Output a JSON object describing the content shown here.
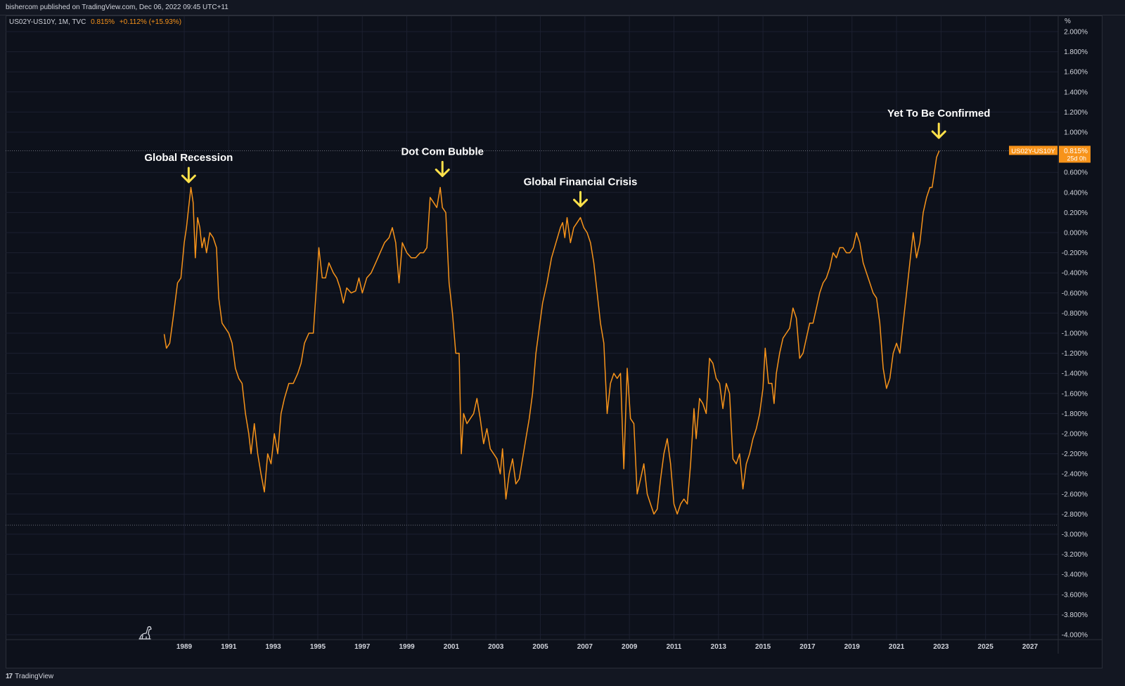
{
  "header": {
    "publisher_text": "bishercom published on TradingView.com, Dec 06, 2022 09:45 UTC+11"
  },
  "legend": {
    "symbol": "US02Y-US10Y, 1M, TVC",
    "value": "0.815%",
    "change": "+0.112% (+15.93%)"
  },
  "footer": {
    "logo_glyph": "17",
    "brand": "TradingView"
  },
  "colors": {
    "background": "#131722",
    "plot_bg": "#0d111b",
    "series": "#f7931a",
    "arrow": "#ffe14a",
    "price_tag": "#f7931a"
  },
  "price_tag": {
    "symbol_label": "US02Y-US10Y",
    "value_label": "0.815%",
    "countdown_label": "25d 0h"
  },
  "chart_data": {
    "type": "line",
    "title": "",
    "xlabel": "",
    "ylabel": "%",
    "unit_label": "%",
    "ylim": [
      -4.2,
      2.1
    ],
    "xlim": [
      1986.0,
      2028.9
    ],
    "grid": true,
    "x_ticks": [
      "1989",
      "1991",
      "1993",
      "1995",
      "1997",
      "1999",
      "2001",
      "2003",
      "2005",
      "2007",
      "2009",
      "2011",
      "2013",
      "2015",
      "2017",
      "2019",
      "2021",
      "2023",
      "2025",
      "2027"
    ],
    "y_ticks": [
      "2.000%",
      "1.800%",
      "1.600%",
      "1.400%",
      "1.200%",
      "1.000%",
      "0.600%",
      "0.400%",
      "0.200%",
      "0.000%",
      "-0.200%",
      "-0.400%",
      "-0.600%",
      "-0.800%",
      "-1.000%",
      "-1.200%",
      "-1.400%",
      "-1.600%",
      "-1.800%",
      "-2.000%",
      "-2.200%",
      "-2.400%",
      "-2.600%",
      "-2.800%",
      "-3.000%",
      "-3.200%",
      "-3.400%",
      "-3.600%",
      "-3.800%",
      "-4.000%"
    ],
    "reference_lines": [
      0.815,
      -2.91
    ],
    "annotations": [
      {
        "text": "Global Recession",
        "x": 1989.2,
        "y": 0.42
      },
      {
        "text": "Dot Com Bubble",
        "x": 2000.6,
        "y": 0.48
      },
      {
        "text": "Global Financial Crisis",
        "x": 2006.8,
        "y": 0.18
      },
      {
        "text": "Yet To Be Confirmed",
        "x": 2022.9,
        "y": 0.86
      }
    ],
    "series": [
      {
        "name": "US02Y-US10Y",
        "points": [
          [
            1988.1,
            -1.01
          ],
          [
            1988.2,
            -1.15
          ],
          [
            1988.35,
            -1.1
          ],
          [
            1988.5,
            -0.85
          ],
          [
            1988.7,
            -0.5
          ],
          [
            1988.85,
            -0.45
          ],
          [
            1989.0,
            -0.1
          ],
          [
            1989.1,
            0.05
          ],
          [
            1989.2,
            0.25
          ],
          [
            1989.3,
            0.45
          ],
          [
            1989.4,
            0.3
          ],
          [
            1989.5,
            -0.25
          ],
          [
            1989.6,
            0.15
          ],
          [
            1989.7,
            0.05
          ],
          [
            1989.8,
            -0.15
          ],
          [
            1989.9,
            -0.05
          ],
          [
            1990.0,
            -0.2
          ],
          [
            1990.15,
            0.0
          ],
          [
            1990.3,
            -0.05
          ],
          [
            1990.45,
            -0.15
          ],
          [
            1990.55,
            -0.65
          ],
          [
            1990.7,
            -0.9
          ],
          [
            1990.85,
            -0.95
          ],
          [
            1991.0,
            -1.0
          ],
          [
            1991.15,
            -1.1
          ],
          [
            1991.3,
            -1.35
          ],
          [
            1991.45,
            -1.45
          ],
          [
            1991.6,
            -1.5
          ],
          [
            1991.75,
            -1.8
          ],
          [
            1991.9,
            -2.0
          ],
          [
            1992.0,
            -2.2
          ],
          [
            1992.15,
            -1.9
          ],
          [
            1992.3,
            -2.2
          ],
          [
            1992.45,
            -2.4
          ],
          [
            1992.6,
            -2.58
          ],
          [
            1992.75,
            -2.2
          ],
          [
            1992.9,
            -2.3
          ],
          [
            1993.05,
            -2.0
          ],
          [
            1993.2,
            -2.2
          ],
          [
            1993.35,
            -1.8
          ],
          [
            1993.5,
            -1.65
          ],
          [
            1993.7,
            -1.5
          ],
          [
            1993.9,
            -1.5
          ],
          [
            1994.1,
            -1.4
          ],
          [
            1994.25,
            -1.3
          ],
          [
            1994.4,
            -1.1
          ],
          [
            1994.6,
            -1.0
          ],
          [
            1994.8,
            -1.0
          ],
          [
            1994.95,
            -0.5
          ],
          [
            1995.05,
            -0.15
          ],
          [
            1995.2,
            -0.45
          ],
          [
            1995.35,
            -0.45
          ],
          [
            1995.5,
            -0.3
          ],
          [
            1995.7,
            -0.4
          ],
          [
            1995.85,
            -0.45
          ],
          [
            1996.0,
            -0.55
          ],
          [
            1996.15,
            -0.7
          ],
          [
            1996.3,
            -0.55
          ],
          [
            1996.5,
            -0.6
          ],
          [
            1996.7,
            -0.58
          ],
          [
            1996.85,
            -0.45
          ],
          [
            1997.0,
            -0.6
          ],
          [
            1997.2,
            -0.45
          ],
          [
            1997.4,
            -0.4
          ],
          [
            1997.6,
            -0.3
          ],
          [
            1997.8,
            -0.2
          ],
          [
            1998.0,
            -0.1
          ],
          [
            1998.2,
            -0.05
          ],
          [
            1998.35,
            0.05
          ],
          [
            1998.5,
            -0.1
          ],
          [
            1998.65,
            -0.5
          ],
          [
            1998.8,
            -0.1
          ],
          [
            1999.0,
            -0.2
          ],
          [
            1999.2,
            -0.25
          ],
          [
            1999.4,
            -0.25
          ],
          [
            1999.6,
            -0.2
          ],
          [
            1999.75,
            -0.2
          ],
          [
            1999.9,
            -0.15
          ],
          [
            2000.05,
            0.35
          ],
          [
            2000.2,
            0.3
          ],
          [
            2000.35,
            0.25
          ],
          [
            2000.5,
            0.45
          ],
          [
            2000.6,
            0.25
          ],
          [
            2000.75,
            0.2
          ],
          [
            2000.9,
            -0.5
          ],
          [
            2001.05,
            -0.8
          ],
          [
            2001.2,
            -1.2
          ],
          [
            2001.35,
            -1.2
          ],
          [
            2001.45,
            -2.2
          ],
          [
            2001.55,
            -1.8
          ],
          [
            2001.7,
            -1.9
          ],
          [
            2001.85,
            -1.85
          ],
          [
            2002.0,
            -1.8
          ],
          [
            2002.15,
            -1.65
          ],
          [
            2002.3,
            -1.85
          ],
          [
            2002.45,
            -2.1
          ],
          [
            2002.6,
            -1.95
          ],
          [
            2002.75,
            -2.15
          ],
          [
            2002.9,
            -2.2
          ],
          [
            2003.05,
            -2.25
          ],
          [
            2003.2,
            -2.4
          ],
          [
            2003.3,
            -2.15
          ],
          [
            2003.45,
            -2.65
          ],
          [
            2003.6,
            -2.4
          ],
          [
            2003.75,
            -2.25
          ],
          [
            2003.9,
            -2.5
          ],
          [
            2004.05,
            -2.45
          ],
          [
            2004.2,
            -2.25
          ],
          [
            2004.35,
            -2.05
          ],
          [
            2004.5,
            -1.85
          ],
          [
            2004.65,
            -1.6
          ],
          [
            2004.8,
            -1.2
          ],
          [
            2004.95,
            -0.95
          ],
          [
            2005.1,
            -0.7
          ],
          [
            2005.3,
            -0.5
          ],
          [
            2005.5,
            -0.25
          ],
          [
            2005.7,
            -0.1
          ],
          [
            2005.9,
            0.05
          ],
          [
            2006.0,
            0.1
          ],
          [
            2006.1,
            -0.05
          ],
          [
            2006.2,
            0.15
          ],
          [
            2006.35,
            -0.1
          ],
          [
            2006.5,
            0.05
          ],
          [
            2006.65,
            0.1
          ],
          [
            2006.8,
            0.15
          ],
          [
            2006.95,
            0.05
          ],
          [
            2007.1,
            0.0
          ],
          [
            2007.25,
            -0.1
          ],
          [
            2007.4,
            -0.3
          ],
          [
            2007.55,
            -0.6
          ],
          [
            2007.7,
            -0.9
          ],
          [
            2007.85,
            -1.1
          ],
          [
            2008.0,
            -1.8
          ],
          [
            2008.15,
            -1.5
          ],
          [
            2008.3,
            -1.4
          ],
          [
            2008.45,
            -1.45
          ],
          [
            2008.6,
            -1.4
          ],
          [
            2008.75,
            -2.35
          ],
          [
            2008.9,
            -1.35
          ],
          [
            2009.05,
            -1.85
          ],
          [
            2009.2,
            -1.9
          ],
          [
            2009.35,
            -2.6
          ],
          [
            2009.5,
            -2.45
          ],
          [
            2009.65,
            -2.3
          ],
          [
            2009.8,
            -2.6
          ],
          [
            2009.95,
            -2.7
          ],
          [
            2010.1,
            -2.8
          ],
          [
            2010.25,
            -2.75
          ],
          [
            2010.4,
            -2.45
          ],
          [
            2010.55,
            -2.2
          ],
          [
            2010.7,
            -2.05
          ],
          [
            2010.85,
            -2.3
          ],
          [
            2011.0,
            -2.7
          ],
          [
            2011.15,
            -2.8
          ],
          [
            2011.3,
            -2.7
          ],
          [
            2011.45,
            -2.65
          ],
          [
            2011.6,
            -2.7
          ],
          [
            2011.75,
            -2.3
          ],
          [
            2011.9,
            -1.75
          ],
          [
            2012.0,
            -2.05
          ],
          [
            2012.15,
            -1.65
          ],
          [
            2012.3,
            -1.7
          ],
          [
            2012.45,
            -1.8
          ],
          [
            2012.6,
            -1.25
          ],
          [
            2012.75,
            -1.3
          ],
          [
            2012.9,
            -1.45
          ],
          [
            2013.05,
            -1.5
          ],
          [
            2013.2,
            -1.75
          ],
          [
            2013.35,
            -1.5
          ],
          [
            2013.5,
            -1.6
          ],
          [
            2013.65,
            -2.25
          ],
          [
            2013.8,
            -2.3
          ],
          [
            2013.95,
            -2.2
          ],
          [
            2014.1,
            -2.55
          ],
          [
            2014.25,
            -2.3
          ],
          [
            2014.4,
            -2.2
          ],
          [
            2014.55,
            -2.05
          ],
          [
            2014.7,
            -1.95
          ],
          [
            2014.85,
            -1.8
          ],
          [
            2015.0,
            -1.55
          ],
          [
            2015.1,
            -1.15
          ],
          [
            2015.25,
            -1.5
          ],
          [
            2015.4,
            -1.5
          ],
          [
            2015.5,
            -1.7
          ],
          [
            2015.6,
            -1.4
          ],
          [
            2015.75,
            -1.2
          ],
          [
            2015.9,
            -1.05
          ],
          [
            2016.05,
            -1.0
          ],
          [
            2016.2,
            -0.95
          ],
          [
            2016.35,
            -0.75
          ],
          [
            2016.5,
            -0.85
          ],
          [
            2016.65,
            -1.25
          ],
          [
            2016.8,
            -1.2
          ],
          [
            2016.95,
            -1.05
          ],
          [
            2017.1,
            -0.9
          ],
          [
            2017.25,
            -0.9
          ],
          [
            2017.4,
            -0.75
          ],
          [
            2017.55,
            -0.6
          ],
          [
            2017.7,
            -0.5
          ],
          [
            2017.85,
            -0.45
          ],
          [
            2018.0,
            -0.35
          ],
          [
            2018.15,
            -0.2
          ],
          [
            2018.3,
            -0.25
          ],
          [
            2018.45,
            -0.15
          ],
          [
            2018.6,
            -0.15
          ],
          [
            2018.75,
            -0.2
          ],
          [
            2018.9,
            -0.2
          ],
          [
            2019.05,
            -0.15
          ],
          [
            2019.2,
            0.0
          ],
          [
            2019.35,
            -0.1
          ],
          [
            2019.5,
            -0.3
          ],
          [
            2019.65,
            -0.4
          ],
          [
            2019.8,
            -0.5
          ],
          [
            2019.95,
            -0.6
          ],
          [
            2020.1,
            -0.65
          ],
          [
            2020.25,
            -0.9
          ],
          [
            2020.4,
            -1.35
          ],
          [
            2020.55,
            -1.55
          ],
          [
            2020.7,
            -1.45
          ],
          [
            2020.85,
            -1.2
          ],
          [
            2021.0,
            -1.1
          ],
          [
            2021.15,
            -1.2
          ],
          [
            2021.3,
            -0.9
          ],
          [
            2021.45,
            -0.6
          ],
          [
            2021.6,
            -0.3
          ],
          [
            2021.75,
            0.0
          ],
          [
            2021.9,
            -0.25
          ],
          [
            2022.05,
            -0.1
          ],
          [
            2022.2,
            0.2
          ],
          [
            2022.35,
            0.35
          ],
          [
            2022.5,
            0.45
          ],
          [
            2022.6,
            0.45
          ],
          [
            2022.7,
            0.6
          ],
          [
            2022.8,
            0.75
          ],
          [
            2022.92,
            0.815
          ]
        ]
      }
    ]
  }
}
